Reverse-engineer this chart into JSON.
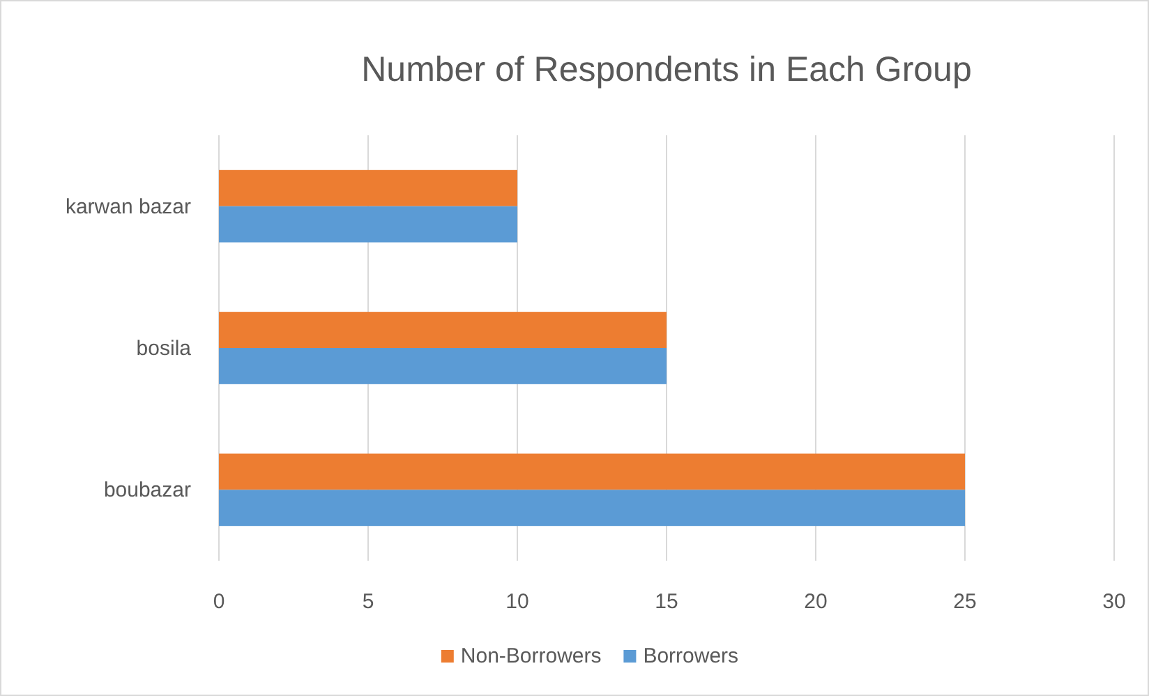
{
  "chart_data": {
    "type": "bar",
    "orientation": "horizontal",
    "title": "Number of Respondents in Each Group",
    "categories": [
      "karwan bazar",
      "bosila",
      "boubazar"
    ],
    "series": [
      {
        "name": "Non-Borrowers",
        "color": "#ed7d31",
        "values": [
          10,
          15,
          25
        ]
      },
      {
        "name": "Borrowers",
        "color": "#5b9bd5",
        "values": [
          10,
          15,
          25
        ]
      }
    ],
    "xlim": [
      0,
      30
    ],
    "xticks": [
      0,
      5,
      10,
      15,
      20,
      25,
      30
    ],
    "grid": "x",
    "legend": "bottom"
  }
}
